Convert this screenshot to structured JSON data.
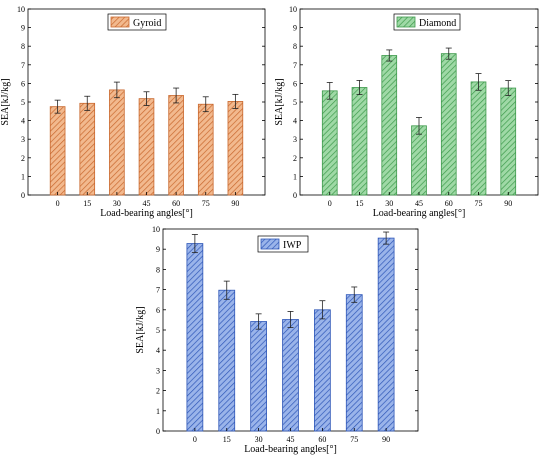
{
  "chart_data": [
    {
      "type": "bar",
      "legend": "Gyroid",
      "legend_position": "top-center",
      "categories": [
        "0",
        "15",
        "30",
        "45",
        "60",
        "75",
        "90"
      ],
      "values": [
        4.75,
        4.93,
        5.65,
        5.18,
        5.35,
        4.88,
        5.03
      ],
      "errors": [
        0.35,
        0.38,
        0.42,
        0.37,
        0.4,
        0.4,
        0.38
      ],
      "xlabel": "Load-bearing angles[°]",
      "ylabel": "SEA[kJ/kg]",
      "ylim": [
        0,
        10
      ],
      "yticks": [
        "0",
        "1",
        "2",
        "3",
        "4",
        "5",
        "6",
        "7",
        "8",
        "9",
        "10"
      ],
      "color": "#f2b98e",
      "hatch_color": "#c9682e"
    },
    {
      "type": "bar",
      "legend": "Diamond",
      "legend_position": "top-center",
      "categories": [
        "0",
        "15",
        "30",
        "45",
        "60",
        "75",
        "90"
      ],
      "values": [
        5.6,
        5.78,
        7.5,
        3.72,
        7.6,
        6.08,
        5.75
      ],
      "errors": [
        0.45,
        0.38,
        0.3,
        0.45,
        0.3,
        0.45,
        0.4
      ],
      "xlabel": "Load-bearing angles[°]",
      "ylabel": "SEA[kJ/kg]",
      "ylim": [
        0,
        10
      ],
      "yticks": [
        "0",
        "1",
        "2",
        "3",
        "4",
        "5",
        "6",
        "7",
        "8",
        "9",
        "10"
      ],
      "color": "#9fd9a6",
      "hatch_color": "#3e9a4c"
    },
    {
      "type": "bar",
      "legend": "IWP",
      "legend_position": "top-center",
      "categories": [
        "0",
        "15",
        "30",
        "45",
        "60",
        "75",
        "90"
      ],
      "values": [
        9.28,
        6.97,
        5.42,
        5.52,
        6.0,
        6.75,
        9.55
      ],
      "errors": [
        0.45,
        0.45,
        0.38,
        0.4,
        0.45,
        0.38,
        0.3
      ],
      "xlabel": "Load-bearing angles[°]",
      "ylabel": "SEA[kJ/kg]",
      "ylim": [
        0,
        10
      ],
      "yticks": [
        "0",
        "1",
        "2",
        "3",
        "4",
        "5",
        "6",
        "7",
        "8",
        "9",
        "10"
      ],
      "color": "#9ab4ea",
      "hatch_color": "#2f57b8"
    }
  ]
}
